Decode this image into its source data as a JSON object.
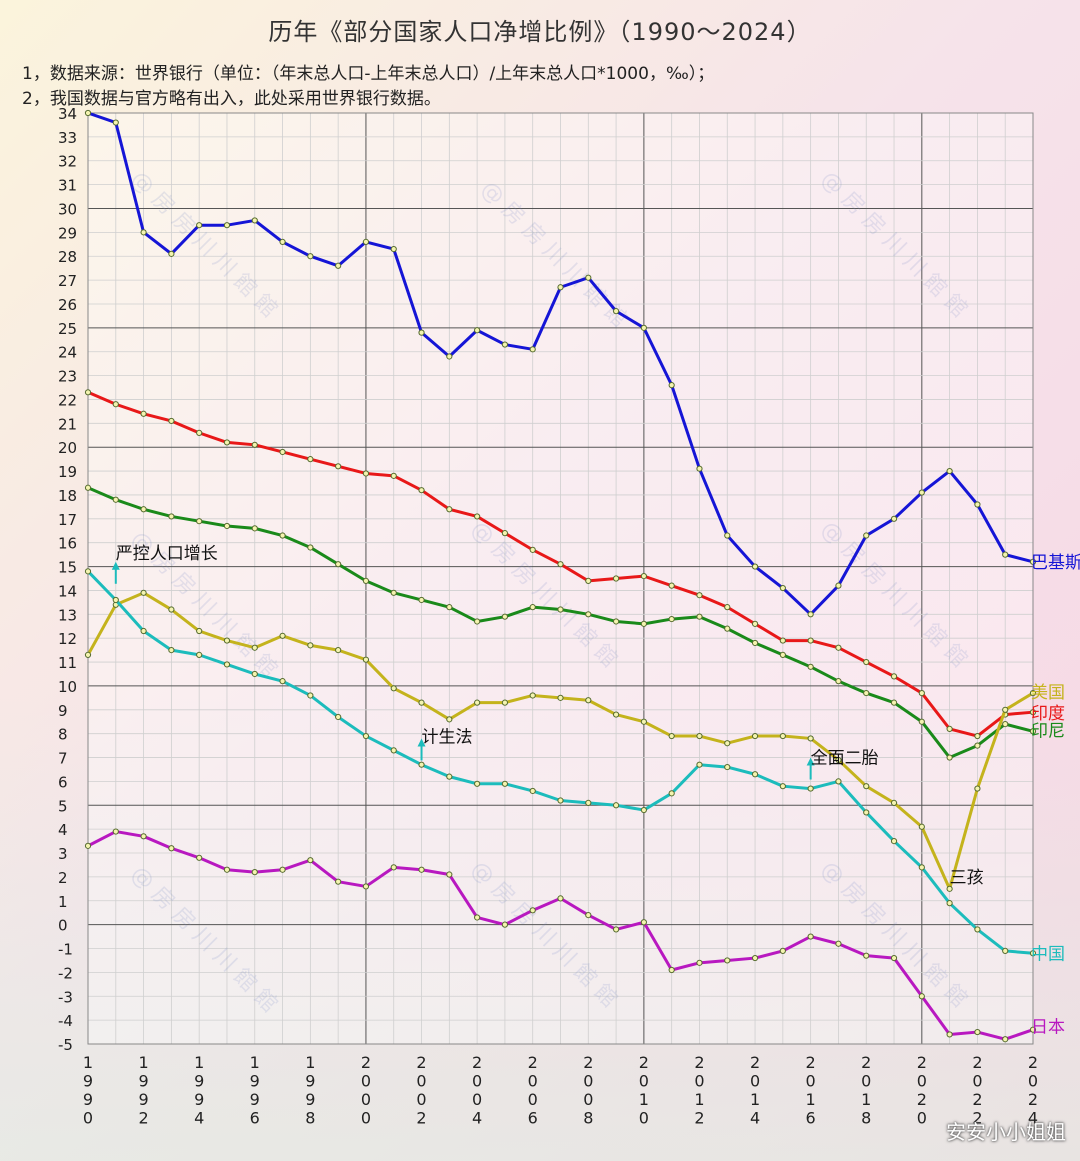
{
  "title": "历年《部分国家人口净增比例》（1990～2024）",
  "notes": [
    "1，数据来源：世界银行（单位：（年末总人口-上年末总人口）/上年末总人口*1000，‰）；",
    "2，我国数据与官方略有出入，此处采用世界银行数据。"
  ],
  "credit": "安安小小姐姐",
  "chart_data": {
    "type": "line",
    "title": "历年《部分国家人口净增比例》（1990～2024）",
    "x": [
      1990,
      1991,
      1992,
      1993,
      1994,
      1995,
      1996,
      1997,
      1998,
      1999,
      2000,
      2001,
      2002,
      2003,
      2004,
      2005,
      2006,
      2007,
      2008,
      2009,
      2010,
      2011,
      2012,
      2013,
      2014,
      2015,
      2016,
      2017,
      2018,
      2019,
      2020,
      2021,
      2022,
      2023,
      2024
    ],
    "x_tick_labels": [
      "1990",
      "1992",
      "1994",
      "1996",
      "1998",
      "2000",
      "2002",
      "2004",
      "2006",
      "2008",
      "2010",
      "2012",
      "2014",
      "2016",
      "2018",
      "2020",
      "2022",
      "2024"
    ],
    "ylim": [
      -5,
      34
    ],
    "yticks": [
      -5,
      -4,
      -3,
      -2,
      -1,
      0,
      1,
      2,
      3,
      4,
      5,
      6,
      7,
      8,
      9,
      10,
      11,
      12,
      13,
      14,
      15,
      16,
      17,
      18,
      19,
      20,
      21,
      22,
      23,
      24,
      25,
      26,
      27,
      28,
      29,
      30,
      31,
      32,
      33,
      34
    ],
    "grid": true,
    "legend": "inline-right",
    "series": [
      {
        "name": "巴基斯坦",
        "color": "#1515d6",
        "values": [
          34.0,
          33.6,
          29.0,
          28.1,
          29.3,
          29.3,
          29.5,
          28.6,
          28.0,
          27.6,
          28.6,
          28.3,
          24.8,
          23.8,
          24.9,
          24.3,
          24.1,
          26.7,
          27.1,
          25.7,
          25.0,
          22.6,
          19.1,
          16.3,
          15.0,
          14.1,
          13.0,
          14.2,
          16.3,
          17.0,
          18.1,
          19.0,
          17.6,
          15.5,
          15.2
        ]
      },
      {
        "name": "印度",
        "color": "#e81818",
        "values": [
          22.3,
          21.8,
          21.4,
          21.1,
          20.6,
          20.2,
          20.1,
          19.8,
          19.5,
          19.2,
          18.9,
          18.8,
          18.2,
          17.4,
          17.1,
          16.4,
          15.7,
          15.1,
          14.4,
          14.5,
          14.6,
          14.2,
          13.8,
          13.3,
          12.6,
          11.9,
          11.9,
          11.6,
          11.0,
          10.4,
          9.7,
          8.2,
          7.9,
          8.8,
          8.9
        ]
      },
      {
        "name": "印尼",
        "color": "#1a8a1a",
        "values": [
          18.3,
          17.8,
          17.4,
          17.1,
          16.9,
          16.7,
          16.6,
          16.3,
          15.8,
          15.1,
          14.4,
          13.9,
          13.6,
          13.3,
          12.7,
          12.9,
          13.3,
          13.2,
          13.0,
          12.7,
          12.6,
          12.8,
          12.9,
          12.4,
          11.8,
          11.3,
          10.8,
          10.2,
          9.7,
          9.3,
          8.5,
          7.0,
          7.5,
          8.4,
          8.1
        ]
      },
      {
        "name": "美国",
        "color": "#c4b31c",
        "values": [
          11.3,
          13.4,
          13.9,
          13.2,
          12.3,
          11.9,
          11.6,
          12.1,
          11.7,
          11.5,
          11.1,
          9.9,
          9.3,
          8.6,
          9.3,
          9.3,
          9.6,
          9.5,
          9.4,
          8.8,
          8.5,
          7.9,
          7.9,
          7.6,
          7.9,
          7.9,
          7.8,
          6.9,
          5.8,
          5.1,
          4.1,
          1.5,
          5.7,
          9.0,
          9.7
        ]
      },
      {
        "name": "中国",
        "color": "#1cbcbc",
        "values": [
          14.8,
          13.6,
          12.3,
          11.5,
          11.3,
          10.9,
          10.5,
          10.2,
          9.6,
          8.7,
          7.9,
          7.3,
          6.7,
          6.2,
          5.9,
          5.9,
          5.6,
          5.2,
          5.1,
          5.0,
          4.8,
          5.5,
          6.7,
          6.6,
          6.3,
          5.8,
          5.7,
          6.0,
          4.7,
          3.5,
          2.4,
          0.9,
          -0.2,
          -1.1,
          -1.2
        ]
      },
      {
        "name": "日本",
        "color": "#b818c0",
        "values": [
          3.3,
          3.9,
          3.7,
          3.2,
          2.8,
          2.3,
          2.2,
          2.3,
          2.7,
          1.8,
          1.6,
          2.4,
          2.3,
          2.1,
          0.3,
          0.0,
          0.6,
          1.1,
          0.4,
          -0.2,
          0.1,
          -1.9,
          -1.6,
          -1.5,
          -1.4,
          -1.1,
          -0.5,
          -0.8,
          -1.3,
          -1.4,
          -3.0,
          -4.6,
          -4.5,
          -4.8,
          -4.4
        ]
      }
    ],
    "annotations": [
      {
        "text": "严控人口增长",
        "year": 1991,
        "value": 15.2
      },
      {
        "text": "计生法",
        "year": 2002,
        "value": 7.8
      },
      {
        "text": "全面二胎",
        "year": 2016,
        "value": 7.0
      },
      {
        "text": "三孩",
        "year": 2021,
        "value": 2.0
      }
    ]
  }
}
